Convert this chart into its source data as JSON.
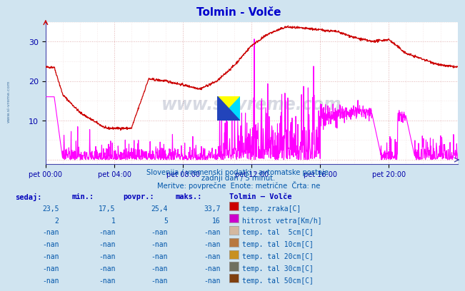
{
  "title": "Tolmin - Volče",
  "bg_color": "#d0e4f0",
  "plot_bg_color": "#ffffff",
  "title_color": "#0000cc",
  "xlabel_color": "#0000aa",
  "watermark_color": "#1a3a6e",
  "x_labels": [
    "pet 00:00",
    "pet 04:00",
    "pet 08:00",
    "pet 12:00",
    "pet 16:00",
    "pet 20:00"
  ],
  "x_ticks_norm": [
    0.0,
    0.1667,
    0.3333,
    0.5,
    0.6667,
    0.8333
  ],
  "y_ticks": [
    10,
    20,
    30
  ],
  "ylim": [
    -1,
    35
  ],
  "subtitle1": "Slovenija / vremenski podatki - avtomatske postaje.",
  "subtitle2": "zadnji dan / 5 minut.",
  "subtitle3": "Meritve: povprečne  Enote: metrične  Črta: ne",
  "subtitle_color": "#0055aa",
  "table_header_color": "#0000bb",
  "table_data_color": "#0055aa",
  "table_headers": [
    "sedaj:",
    "min.:",
    "povpr.:",
    "maks.:"
  ],
  "legend_title": "Tolmin – Volče",
  "table_data": [
    [
      "23,5",
      "17,5",
      "25,4",
      "33,7"
    ],
    [
      "2",
      "1",
      "5",
      "16"
    ],
    [
      "-nan",
      "-nan",
      "-nan",
      "-nan"
    ],
    [
      "-nan",
      "-nan",
      "-nan",
      "-nan"
    ],
    [
      "-nan",
      "-nan",
      "-nan",
      "-nan"
    ],
    [
      "-nan",
      "-nan",
      "-nan",
      "-nan"
    ],
    [
      "-nan",
      "-nan",
      "-nan",
      "-nan"
    ]
  ],
  "legend_items": [
    {
      "label": "temp. zraka[C]",
      "color": "#cc0000"
    },
    {
      "label": "hitrost vetra[Km/h]",
      "color": "#cc00cc"
    },
    {
      "label": "temp. tal  5cm[C]",
      "color": "#d4b8a0"
    },
    {
      "label": "temp. tal 10cm[C]",
      "color": "#b87840"
    },
    {
      "label": "temp. tal 20cm[C]",
      "color": "#c89020"
    },
    {
      "label": "temp. tal 30cm[C]",
      "color": "#707060"
    },
    {
      "label": "temp. tal 50cm[C]",
      "color": "#804010"
    }
  ],
  "temp_color": "#cc0000",
  "wind_color": "#ff00ff"
}
